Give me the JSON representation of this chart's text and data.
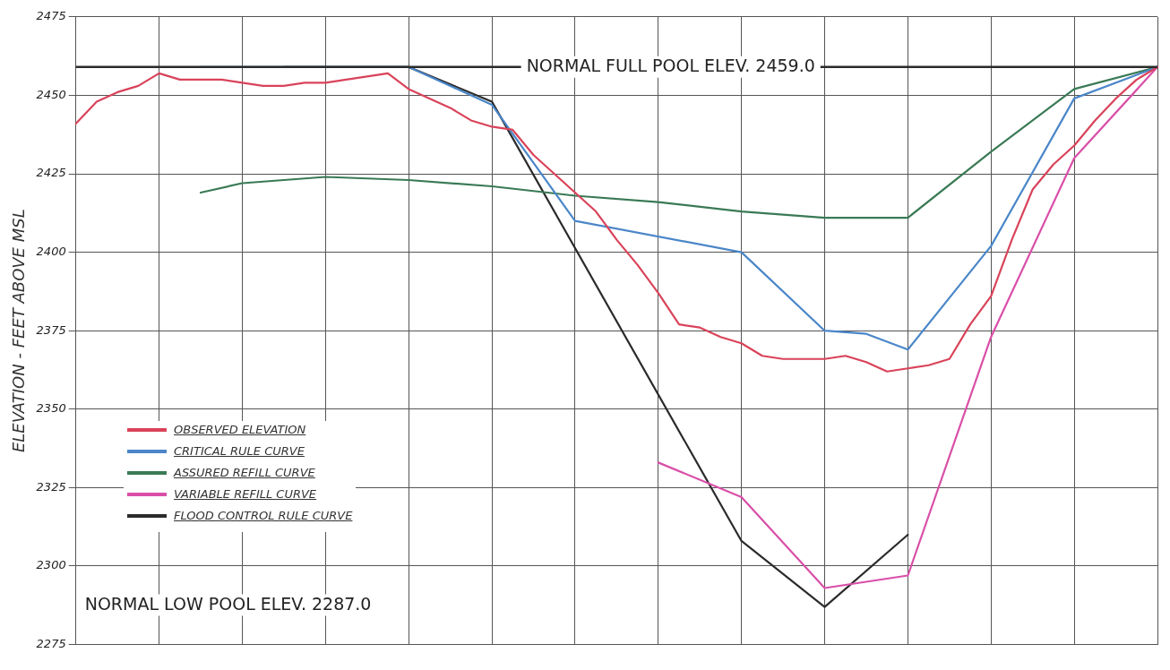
{
  "chart_data": {
    "type": "line",
    "ylabel": "ELEVATION - FEET ABOVE MSL",
    "categories": [
      null,
      null,
      null,
      null,
      null,
      null,
      null,
      null,
      null,
      null,
      null,
      null,
      null,
      null,
      null,
      null,
      null,
      null,
      null,
      null,
      null,
      null,
      null,
      null,
      null,
      null,
      null,
      null,
      null,
      null,
      null,
      null,
      null,
      null,
      null,
      null,
      null,
      null,
      null,
      null,
      null,
      null,
      null,
      null,
      null,
      null,
      null,
      null,
      null,
      null,
      null,
      null,
      null
    ],
    "ylim": [
      2275,
      2475
    ],
    "yticks": [
      2275,
      2300,
      2325,
      2350,
      2375,
      2400,
      2425,
      2450,
      2475
    ],
    "grid": true,
    "legend": "bottom left",
    "marker": "none",
    "line_style": "solid",
    "series": [
      {
        "name": "OBSERVED ELEVATION",
        "color": "#d9435a",
        "values": [
          2441,
          2448,
          2451,
          2453,
          2457,
          2455,
          2455,
          2455,
          2454,
          2453,
          2453,
          2454,
          2454,
          2455,
          2456,
          2457,
          2452,
          2449,
          2446,
          2442,
          2440,
          2439,
          2431,
          2425,
          2419,
          2413,
          2404,
          2396,
          2387,
          2377,
          2376,
          2373,
          2371,
          2367,
          2366,
          2366,
          2366,
          2367,
          2365,
          2362,
          2363,
          2364,
          2366,
          2377,
          2386,
          2404,
          2420,
          2428,
          2434,
          2442,
          2449,
          2455,
          2459
        ]
      },
      {
        "name": "CRITICAL RULE CURVE",
        "color": "#4a86c8",
        "values": [
          null,
          null,
          null,
          null,
          null,
          null,
          2459,
          null,
          null,
          null,
          null,
          null,
          null,
          null,
          null,
          null,
          2459,
          null,
          null,
          null,
          2447,
          null,
          null,
          null,
          2410,
          null,
          null,
          null,
          null,
          null,
          null,
          null,
          2400,
          null,
          null,
          null,
          2375,
          null,
          2374,
          null,
          2369,
          null,
          null,
          null,
          2402,
          null,
          null,
          null,
          2449,
          null,
          null,
          null,
          2459
        ]
      },
      {
        "name": "ASSURED REFILL CURVE",
        "color": "#3a7a55",
        "values": [
          null,
          null,
          null,
          null,
          null,
          null,
          2419,
          null,
          2422,
          null,
          null,
          null,
          2424,
          null,
          null,
          null,
          2423,
          null,
          null,
          null,
          2421,
          null,
          null,
          null,
          2418,
          null,
          null,
          null,
          2416,
          null,
          null,
          null,
          2413,
          null,
          null,
          null,
          2411,
          null,
          null,
          null,
          2411,
          null,
          null,
          null,
          2432,
          null,
          null,
          null,
          2452,
          null,
          null,
          null,
          2459
        ]
      },
      {
        "name": "VARIABLE REFILL CURVE",
        "color": "#d94fa8",
        "values": [
          null,
          null,
          null,
          null,
          null,
          null,
          null,
          null,
          null,
          null,
          null,
          null,
          null,
          null,
          null,
          null,
          null,
          null,
          null,
          null,
          null,
          null,
          null,
          null,
          null,
          null,
          null,
          null,
          2333,
          null,
          null,
          null,
          2322,
          null,
          null,
          null,
          2293,
          null,
          null,
          null,
          2297,
          null,
          null,
          null,
          2373,
          null,
          null,
          null,
          2430,
          null,
          null,
          null,
          2459
        ]
      },
      {
        "name": "FLOOD CONTROL RULE CURVE",
        "color": "#2b2b2b",
        "values": [
          null,
          null,
          null,
          null,
          null,
          null,
          null,
          null,
          null,
          null,
          2459,
          null,
          null,
          null,
          null,
          null,
          2459,
          null,
          null,
          null,
          2448,
          null,
          null,
          null,
          null,
          null,
          null,
          null,
          null,
          null,
          null,
          null,
          2308,
          null,
          null,
          null,
          2287,
          null,
          null,
          null,
          2310,
          null,
          null,
          null,
          null,
          null,
          null,
          null,
          null,
          null,
          null,
          null,
          null
        ]
      }
    ],
    "ref_lines": [
      {
        "axis": "y",
        "value": 2459,
        "label": "NORMAL FULL POOL ELEV. 2459.0",
        "color": "#2b2b2b"
      }
    ],
    "annotations": [
      "NORMAL LOW POOL ELEV. 2287.0"
    ]
  }
}
